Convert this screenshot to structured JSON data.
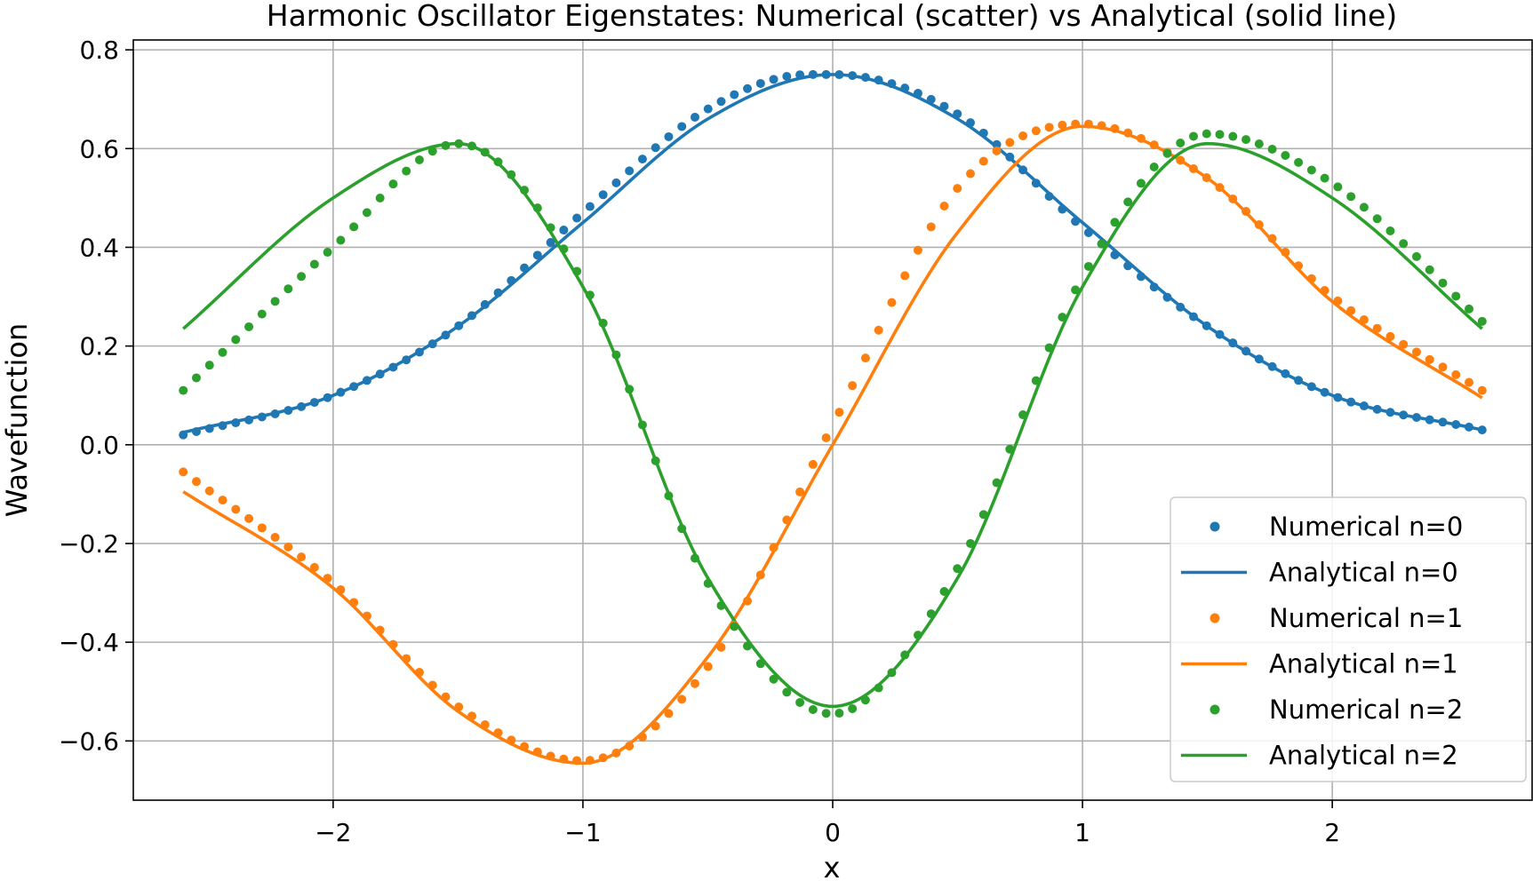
{
  "chart_data": {
    "type": "line",
    "title": "Harmonic Oscillator Eigenstates: Numerical (scatter) vs Analytical (solid line)",
    "xlabel": "x",
    "ylabel": "Wavefunction",
    "xlim": [
      -2.8,
      2.8
    ],
    "ylim": [
      -0.72,
      0.82
    ],
    "xticks": [
      -2,
      -1,
      0,
      1,
      2
    ],
    "xtick_labels": [
      "−2",
      "−1",
      "0",
      "1",
      "2"
    ],
    "yticks": [
      -0.6,
      -0.4,
      -0.2,
      0.0,
      0.2,
      0.4,
      0.6,
      0.8
    ],
    "ytick_labels": [
      "−0.6",
      "−0.4",
      "−0.2",
      "0.0",
      "0.2",
      "0.4",
      "0.6",
      "0.8"
    ],
    "grid": true,
    "legend_position": "lower-right",
    "x_range": [
      -2.6,
      2.6
    ],
    "series": [
      {
        "name": "Numerical n=0",
        "kind": "scatter",
        "color": "#1f77b4",
        "x": [
          -2.6,
          -2.0,
          -1.5,
          -1.0,
          -0.5,
          -0.1,
          0.0,
          0.5,
          1.0,
          1.5,
          2.0,
          2.6
        ],
        "y": [
          0.02,
          0.1,
          0.24,
          0.47,
          0.68,
          0.75,
          0.75,
          0.67,
          0.44,
          0.24,
          0.1,
          0.03
        ]
      },
      {
        "name": "Analytical n=0",
        "kind": "line",
        "color": "#1f77b4",
        "x": [
          -2.6,
          -2.0,
          -1.5,
          -1.0,
          -0.5,
          0.0,
          0.5,
          1.0,
          1.5,
          2.0,
          2.6
        ],
        "y": [
          0.025,
          0.1,
          0.24,
          0.45,
          0.66,
          0.75,
          0.66,
          0.45,
          0.24,
          0.1,
          0.03
        ]
      },
      {
        "name": "Numerical n=1",
        "kind": "scatter",
        "color": "#ff7f0e",
        "x": [
          -2.6,
          -2.0,
          -1.5,
          -1.0,
          -0.5,
          0.0,
          0.5,
          1.0,
          1.5,
          2.0,
          2.6
        ],
        "y": [
          -0.055,
          -0.28,
          -0.53,
          -0.64,
          -0.45,
          0.04,
          0.52,
          0.65,
          0.54,
          0.3,
          0.11
        ]
      },
      {
        "name": "Analytical n=1",
        "kind": "line",
        "color": "#ff7f0e",
        "x": [
          -2.6,
          -2.0,
          -1.5,
          -1.0,
          -0.5,
          0.0,
          0.5,
          1.0,
          1.5,
          2.0,
          2.6
        ],
        "y": [
          -0.095,
          -0.29,
          -0.54,
          -0.645,
          -0.43,
          0.0,
          0.43,
          0.645,
          0.54,
          0.29,
          0.095
        ]
      },
      {
        "name": "Numerical n=2",
        "kind": "scatter",
        "color": "#2ca02c",
        "x": [
          -2.6,
          -2.0,
          -1.5,
          -1.0,
          -0.5,
          0.0,
          0.5,
          1.0,
          1.5,
          2.0,
          2.6
        ],
        "y": [
          0.11,
          0.4,
          0.61,
          0.33,
          -0.28,
          -0.545,
          -0.25,
          0.34,
          0.63,
          0.53,
          0.25
        ]
      },
      {
        "name": "Analytical n=2",
        "kind": "line",
        "color": "#2ca02c",
        "x": [
          -2.6,
          -2.0,
          -1.5,
          -1.0,
          -0.5,
          0.0,
          0.5,
          1.0,
          1.5,
          2.0,
          2.6
        ],
        "y": [
          0.235,
          0.5,
          0.61,
          0.32,
          -0.27,
          -0.53,
          -0.27,
          0.32,
          0.61,
          0.5,
          0.235
        ]
      }
    ]
  }
}
